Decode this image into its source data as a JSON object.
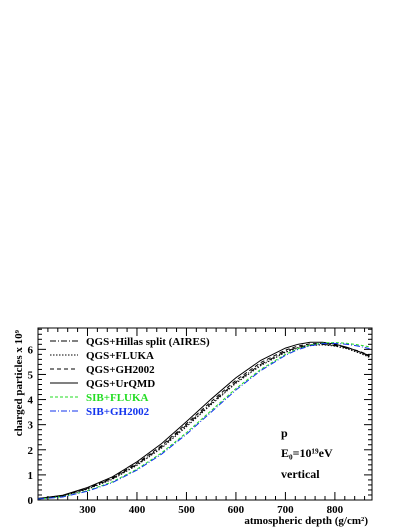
{
  "chart_data": {
    "type": "line",
    "title": "",
    "xlabel": "atmospheric depth (g/cm²)",
    "ylabel": "charged particles x 10⁹",
    "xlim": [
      200,
      875
    ],
    "ylim": [
      0,
      6.85
    ],
    "x_ticks": [
      300,
      400,
      500,
      600,
      700,
      800
    ],
    "y_ticks": [
      0,
      1,
      2,
      3,
      4,
      5,
      6
    ],
    "grid": false,
    "legend_position": "top-left",
    "annotations": [
      "p",
      "E₀=10¹⁹eV",
      "vertical"
    ],
    "series": [
      {
        "name": "QGS+Hillas split (AIRES)",
        "color": "#000000",
        "dash": "6,2,1,2",
        "x": [
          200,
          250,
          300,
          350,
          400,
          450,
          500,
          550,
          600,
          650,
          700,
          725,
          750,
          775,
          800,
          825,
          850,
          870
        ],
        "y": [
          0.05,
          0.17,
          0.45,
          0.85,
          1.42,
          2.12,
          2.98,
          3.85,
          4.7,
          5.4,
          5.92,
          6.08,
          6.18,
          6.2,
          6.15,
          6.05,
          5.9,
          5.75
        ]
      },
      {
        "name": "QGS+FLUKA",
        "color": "#000000",
        "dash": "1.5,1.5",
        "x": [
          200,
          250,
          300,
          350,
          400,
          450,
          500,
          550,
          600,
          650,
          700,
          725,
          750,
          775,
          800,
          825,
          850,
          870
        ],
        "y": [
          0.05,
          0.16,
          0.43,
          0.82,
          1.38,
          2.07,
          2.92,
          3.8,
          4.65,
          5.35,
          5.88,
          6.05,
          6.15,
          6.18,
          6.13,
          6.02,
          5.85,
          5.68
        ]
      },
      {
        "name": "QGS+GH2002",
        "color": "#000000",
        "dash": "4,3",
        "x": [
          200,
          250,
          300,
          350,
          400,
          450,
          500,
          550,
          600,
          650,
          700,
          725,
          750,
          775,
          800,
          825,
          850,
          870
        ],
        "y": [
          0.06,
          0.18,
          0.47,
          0.88,
          1.46,
          2.17,
          3.04,
          3.92,
          4.77,
          5.47,
          5.97,
          6.13,
          6.22,
          6.24,
          6.18,
          6.07,
          5.92,
          5.76
        ]
      },
      {
        "name": "QGS+UrQMD",
        "color": "#000000",
        "dash": "",
        "x": [
          200,
          250,
          300,
          350,
          400,
          450,
          500,
          550,
          600,
          650,
          700,
          725,
          750,
          775,
          800,
          825,
          850,
          870
        ],
        "y": [
          0.06,
          0.19,
          0.5,
          0.92,
          1.52,
          2.25,
          3.12,
          4.02,
          4.87,
          5.56,
          6.05,
          6.2,
          6.28,
          6.28,
          6.21,
          6.08,
          5.9,
          5.72
        ]
      },
      {
        "name": "SIB+FLUKA",
        "color": "#22dd22",
        "dash": "3,2",
        "x": [
          200,
          250,
          300,
          350,
          400,
          450,
          500,
          550,
          600,
          650,
          700,
          725,
          750,
          775,
          800,
          825,
          850,
          870
        ],
        "y": [
          0.04,
          0.13,
          0.37,
          0.72,
          1.23,
          1.88,
          2.68,
          3.56,
          4.44,
          5.2,
          5.8,
          6.02,
          6.17,
          6.25,
          6.27,
          6.24,
          6.17,
          6.1
        ]
      },
      {
        "name": "SIB+GH2002",
        "color": "#1133ee",
        "dash": "6,2,1,2",
        "x": [
          200,
          250,
          300,
          350,
          400,
          450,
          500,
          550,
          600,
          650,
          700,
          725,
          750,
          775,
          800,
          825,
          850,
          870
        ],
        "y": [
          0.04,
          0.12,
          0.35,
          0.69,
          1.19,
          1.83,
          2.62,
          3.5,
          4.38,
          5.15,
          5.76,
          5.99,
          6.14,
          6.23,
          6.24,
          6.2,
          6.12,
          6.03
        ]
      }
    ]
  }
}
